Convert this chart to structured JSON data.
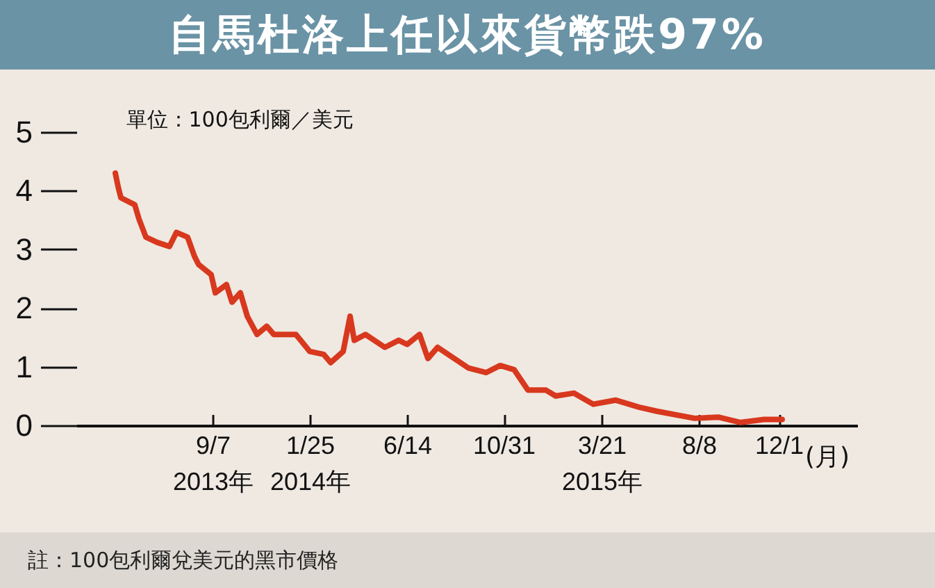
{
  "chart_data": {
    "type": "line",
    "title": "自馬杜洛上任以來貨幣跌97%",
    "subtitle": "單位：100包利爾／美元",
    "xlabel": "(月)",
    "annotations": [
      "註：100包利爾兌美元的黑市價格"
    ],
    "x": [
      "2013-04-20",
      "2013-04-24",
      "2013-04-28",
      "2013-05-18",
      "2013-05-24",
      "2013-06-03",
      "2013-06-19",
      "2013-07-07",
      "2013-07-17",
      "2013-08-02",
      "2013-08-12",
      "2013-08-18",
      "2013-09-05",
      "2013-09-11",
      "2013-09-27",
      "2013-10-05",
      "2013-10-17",
      "2013-10-27",
      "2013-11-10",
      "2013-11-24",
      "2013-12-04",
      "2014-01-05",
      "2014-01-25",
      "2014-02-14",
      "2014-02-24",
      "2014-03-14",
      "2014-03-24",
      "2014-03-30",
      "2014-04-15",
      "2014-05-13",
      "2014-06-02",
      "2014-06-14",
      "2014-07-02",
      "2014-07-14",
      "2014-07-28",
      "2014-09-10",
      "2014-10-06",
      "2014-10-26",
      "2014-11-15",
      "2014-12-05",
      "2014-12-31",
      "2015-01-14",
      "2015-02-09",
      "2015-03-09",
      "2015-04-10",
      "2015-05-14",
      "2015-06-09",
      "2015-08-02",
      "2015-09-05",
      "2015-10-07",
      "2015-11-10",
      "2015-12-06"
    ],
    "series": [
      {
        "color": "#d8381e",
        "values": [
          4.3,
          4.07,
          3.88,
          3.76,
          3.52,
          3.21,
          3.12,
          3.05,
          3.29,
          3.21,
          2.88,
          2.74,
          2.57,
          2.26,
          2.4,
          2.1,
          2.26,
          1.86,
          1.55,
          1.69,
          1.55,
          1.55,
          1.26,
          1.21,
          1.07,
          1.26,
          1.86,
          1.45,
          1.55,
          1.33,
          1.45,
          1.38,
          1.55,
          1.14,
          1.33,
          0.98,
          0.9,
          1.02,
          0.95,
          0.6,
          0.6,
          0.5,
          0.55,
          0.36,
          0.43,
          0.31,
          0.24,
          0.12,
          0.14,
          0.05,
          0.1,
          0.1
        ]
      }
    ],
    "xlim": [
      "2013-02-23",
      "2016-03-23"
    ],
    "xticks": [
      {
        "value": "2013-09-07",
        "label": "9/7\n2013年"
      },
      {
        "value": "2014-01-25",
        "label": "1/25\n2014年"
      },
      {
        "value": "2014-06-14",
        "label": "6/14"
      },
      {
        "value": "2014-10-31",
        "label": "10/31"
      },
      {
        "value": "2015-03-21",
        "label": "3/21\n2015年"
      },
      {
        "value": "2015-08-08",
        "label": "8/8"
      },
      {
        "value": "2015-12-01",
        "label": "12/1"
      }
    ],
    "ylim": [
      0,
      5
    ],
    "yticks": [
      0,
      1,
      2,
      3,
      4,
      5
    ],
    "grid": false
  }
}
